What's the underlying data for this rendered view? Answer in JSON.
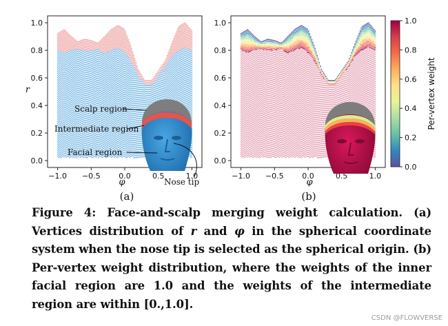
{
  "chart_data": [
    {
      "type": "scatter",
      "panel_label": "(a)",
      "xlabel": "φ",
      "ylabel": "r",
      "xlim": [
        -1.15,
        1.15
      ],
      "ylim": [
        -0.05,
        1.05
      ],
      "xticks": [
        "−1.0",
        "−0.5",
        "0.0",
        "0.5",
        "1.0"
      ],
      "xtick_values": [
        -1.0,
        -0.5,
        0.0,
        0.5,
        1.0
      ],
      "yticks": [
        "0.0",
        "0.2",
        "0.4",
        "0.6",
        "0.8",
        "1.0"
      ],
      "ytick_values": [
        0.0,
        0.2,
        0.4,
        0.6,
        0.8,
        1.0
      ],
      "boundary_top": {
        "x": [
          -1.0,
          -0.9,
          -0.8,
          -0.7,
          -0.6,
          -0.5,
          -0.4,
          -0.3,
          -0.2,
          -0.1,
          0.0,
          0.1,
          0.2,
          0.3,
          0.4,
          0.5,
          0.6,
          0.7,
          0.8,
          0.9,
          1.0
        ],
        "y": [
          0.92,
          0.95,
          0.9,
          0.86,
          0.88,
          0.87,
          0.85,
          0.9,
          0.95,
          0.98,
          0.95,
          0.82,
          0.66,
          0.58,
          0.58,
          0.65,
          0.72,
          0.85,
          0.97,
          1.0,
          0.94
        ]
      },
      "boundary_mid": {
        "x": [
          -1.0,
          -0.9,
          -0.8,
          -0.7,
          -0.6,
          -0.5,
          -0.4,
          -0.3,
          -0.2,
          -0.1,
          0.0,
          0.1,
          0.2,
          0.3,
          0.4,
          0.5,
          0.6,
          0.7,
          0.8,
          0.9,
          1.0
        ],
        "y": [
          0.8,
          0.78,
          0.8,
          0.81,
          0.8,
          0.8,
          0.81,
          0.78,
          0.8,
          0.82,
          0.78,
          0.72,
          0.62,
          0.55,
          0.55,
          0.62,
          0.68,
          0.76,
          0.8,
          0.82,
          0.8
        ]
      },
      "annotations": [
        "Scalp region",
        "Intermediate region",
        "Facial region",
        "Nose tip"
      ],
      "colors": {
        "scalp": "#e88888",
        "facial": "#3f9ad8",
        "head_skin": "#2f8fd2",
        "head_hair": "#808080",
        "band": "#e8534b"
      }
    },
    {
      "type": "scatter",
      "panel_label": "(b)",
      "xlabel": "φ",
      "xlim": [
        -1.15,
        1.15
      ],
      "ylim": [
        -0.05,
        1.05
      ],
      "xticks": [
        "−1.0",
        "−0.5",
        "0.0",
        "0.5",
        "1.0"
      ],
      "xtick_values": [
        -1.0,
        -0.5,
        0.0,
        0.5,
        1.0
      ],
      "yticks": [
        "0.0",
        "0.2",
        "0.4",
        "0.6",
        "0.8",
        "1.0"
      ],
      "ytick_values": [
        0.0,
        0.2,
        0.4,
        0.6,
        0.8,
        1.0
      ],
      "colorbar": {
        "label": "Per-vertex weight",
        "ticks": [
          "0.0",
          "0.2",
          "0.4",
          "0.6",
          "0.8",
          "1.0"
        ],
        "tick_values": [
          0.0,
          0.2,
          0.4,
          0.6,
          0.8,
          1.0
        ],
        "colormap": [
          "#5e4fa2",
          "#3288bd",
          "#66c2a5",
          "#abdda4",
          "#e6f598",
          "#fee08b",
          "#fdae61",
          "#f46d43",
          "#d53e4f",
          "#9e0142"
        ]
      },
      "colors": {
        "inner": "#c2305a",
        "inner_light": "#e6a0b6",
        "face": "#c8104a",
        "head_hair": "#7d7d7d"
      }
    }
  ],
  "caption": {
    "label": "Figure 4:",
    "text_1": " Face-and-scalp merging weight calculation. (a) Vertices distribution of ",
    "sym_r": "r",
    "text_2": " and ",
    "sym_phi": "φ",
    "text_3": " in the spherical coordinate system when the nose tip is selected as the spherical origin. (b) Per-vertex weight distribution, where the weights of the inner facial region are 1.0 and the weights of the intermediate region are within [0.,1.0]."
  },
  "watermark": "CSDN @FLOWVERSE"
}
